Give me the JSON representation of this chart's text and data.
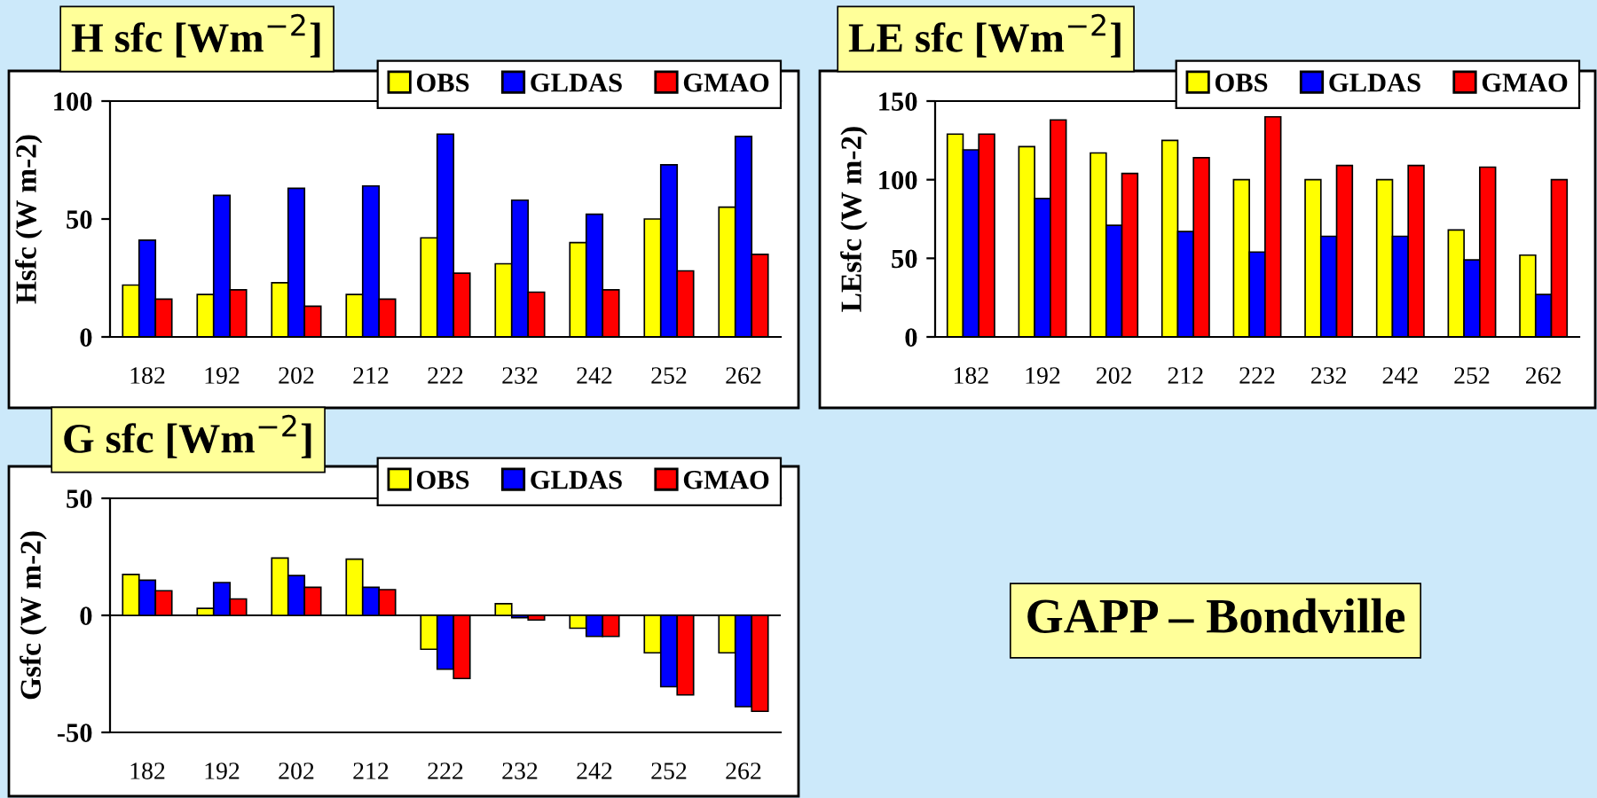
{
  "chart_data": [
    {
      "type": "bar",
      "title": "H sfc [Wm$^{−2}$]",
      "ylabel": "Hsfc (W m-2)",
      "categories": [
        "182",
        "192",
        "202",
        "212",
        "222",
        "232",
        "242",
        "252",
        "262"
      ],
      "ylim": [
        0,
        100
      ],
      "yticks": [
        0,
        50,
        100
      ],
      "legend": "top right",
      "series": [
        {
          "name": "OBS",
          "color": "#ffff00",
          "values": [
            22,
            18,
            23,
            18,
            42,
            31,
            40,
            50,
            55
          ]
        },
        {
          "name": "GLDAS",
          "color": "#0000ff",
          "values": [
            41,
            60,
            63,
            64,
            86,
            58,
            52,
            73,
            85
          ]
        },
        {
          "name": "GMAO",
          "color": "#ff0000",
          "values": [
            16,
            20,
            13,
            16,
            27,
            19,
            20,
            28,
            35
          ]
        }
      ]
    },
    {
      "type": "bar",
      "title": "LE sfc [Wm$^{−2}$]",
      "ylabel": "LEsfc (W m-2)",
      "categories": [
        "182",
        "192",
        "202",
        "212",
        "222",
        "232",
        "242",
        "252",
        "262"
      ],
      "ylim": [
        0,
        150
      ],
      "yticks": [
        0,
        50,
        100,
        150
      ],
      "legend": "top right",
      "series": [
        {
          "name": "OBS",
          "color": "#ffff00",
          "values": [
            129,
            121,
            117,
            125,
            100,
            100,
            100,
            68,
            52
          ]
        },
        {
          "name": "GLDAS",
          "color": "#0000ff",
          "values": [
            119,
            88,
            71,
            67,
            54,
            64,
            64,
            49,
            27
          ]
        },
        {
          "name": "GMAO",
          "color": "#ff0000",
          "values": [
            129,
            138,
            104,
            114,
            140,
            109,
            109,
            108,
            100
          ]
        }
      ]
    },
    {
      "type": "bar",
      "title": "G sfc [Wm$^{−2}$]",
      "ylabel": "Gsfc (W m-2)",
      "categories": [
        "182",
        "192",
        "202",
        "212",
        "222",
        "232",
        "242",
        "252",
        "262"
      ],
      "ylim": [
        -50,
        50
      ],
      "yticks": [
        -50,
        0,
        50
      ],
      "legend": "top right",
      "series": [
        {
          "name": "OBS",
          "color": "#ffff00",
          "values": [
            17.5,
            3,
            24.5,
            24,
            -14.5,
            5,
            -5.5,
            -16,
            -16
          ]
        },
        {
          "name": "GLDAS",
          "color": "#0000ff",
          "values": [
            15,
            14,
            17,
            12,
            -23,
            -1,
            -9,
            -30.5,
            -39
          ]
        },
        {
          "name": "GMAO",
          "color": "#ff0000",
          "values": [
            10.5,
            7,
            12,
            11,
            -27,
            -2,
            -9,
            -34,
            -41
          ]
        }
      ]
    },
    {
      "type": "other",
      "title": "GAPP – Bondville"
    }
  ]
}
